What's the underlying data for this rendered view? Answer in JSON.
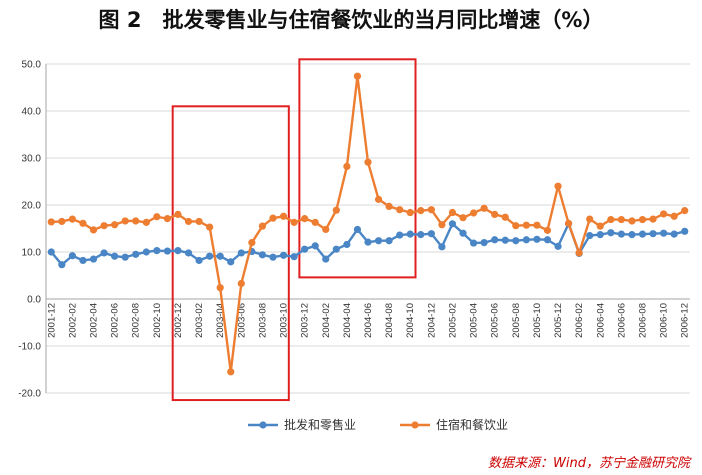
{
  "chart_data": {
    "type": "line",
    "title": "图 2　批发零售业与住宿餐饮业的当月同比增速（%）",
    "xlabel": "",
    "ylabel": "",
    "ylim": [
      -20,
      50
    ],
    "yticks": [
      "50.0",
      "40.0",
      "30.0",
      "20.0",
      "10.0",
      "0.0",
      "-10.0",
      "-20.0"
    ],
    "grid": true,
    "legend_position": "bottom",
    "x": [
      "2001-12",
      "2002-01",
      "2002-02",
      "2002-03",
      "2002-04",
      "2002-05",
      "2002-06",
      "2002-07",
      "2002-08",
      "2002-09",
      "2002-10",
      "2002-11",
      "2002-12",
      "2003-01",
      "2003-02",
      "2003-03",
      "2003-04",
      "2003-05",
      "2003-06",
      "2003-07",
      "2003-08",
      "2003-09",
      "2003-10",
      "2003-11",
      "2003-12",
      "2004-01",
      "2004-02",
      "2004-03",
      "2004-04",
      "2004-05",
      "2004-06",
      "2004-07",
      "2004-08",
      "2004-09",
      "2004-10",
      "2004-11",
      "2004-12",
      "2005-01",
      "2005-02",
      "2005-03",
      "2005-04",
      "2005-05",
      "2005-06",
      "2005-07",
      "2005-08",
      "2005-09",
      "2005-10",
      "2005-11",
      "2005-12",
      "2006-01",
      "2006-02",
      "2006-03",
      "2006-04",
      "2006-05",
      "2006-06",
      "2006-07",
      "2006-08",
      "2006-09",
      "2006-10",
      "2006-11",
      "2006-12"
    ],
    "x_tick_labels": [
      "2001-12",
      "2002-02",
      "2002-04",
      "2002-06",
      "2002-08",
      "2002-10",
      "2002-12",
      "2003-02",
      "2003-04",
      "2003-06",
      "2003-08",
      "2003-10",
      "2003-12",
      "2004-02",
      "2004-04",
      "2004-06",
      "2004-08",
      "2004-10",
      "2004-12",
      "2005-02",
      "2005-04",
      "2005-06",
      "2005-08",
      "2005-10",
      "2005-12",
      "2006-02",
      "2006-04",
      "2006-06",
      "2006-08",
      "2006-10",
      "2006-12"
    ],
    "series": [
      {
        "name": "批发和零售业",
        "color": "#4A86C5",
        "values": [
          10.0,
          7.3,
          9.2,
          8.2,
          8.5,
          9.8,
          9.1,
          8.9,
          9.5,
          10.0,
          10.3,
          10.2,
          10.3,
          9.8,
          8.2,
          9.1,
          9.1,
          7.9,
          9.8,
          10.1,
          9.4,
          8.9,
          9.3,
          9.0,
          10.6,
          11.3,
          8.5,
          10.6,
          11.6,
          14.8,
          12.1,
          12.4,
          12.4,
          13.6,
          13.8,
          13.7,
          13.9,
          11.1,
          16.0,
          14.0,
          11.9,
          12.0,
          12.6,
          12.5,
          12.4,
          12.6,
          12.7,
          12.6,
          11.2,
          16.0,
          9.7,
          13.5,
          13.7,
          14.1,
          13.8,
          13.7,
          13.8,
          13.9,
          14.0,
          13.8,
          14.4
        ]
      },
      {
        "name": "住宿和餐饮业",
        "color": "#ED7D31",
        "values": [
          16.4,
          16.5,
          17.0,
          16.1,
          14.7,
          15.6,
          15.8,
          16.6,
          16.6,
          16.3,
          17.5,
          17.1,
          18.0,
          16.5,
          16.5,
          15.3,
          2.4,
          -15.5,
          3.3,
          12.0,
          15.5,
          17.2,
          17.6,
          16.3,
          17.1,
          16.3,
          14.8,
          18.9,
          28.2,
          47.4,
          29.1,
          21.2,
          19.7,
          19.0,
          18.4,
          18.8,
          19.0,
          15.8,
          18.4,
          17.3,
          18.3,
          19.3,
          18.0,
          17.4,
          15.6,
          15.7,
          15.7,
          14.6,
          24.0,
          16.1,
          9.8,
          17.0,
          15.5,
          16.9,
          16.9,
          16.6,
          16.9,
          17.0,
          18.1,
          17.6,
          18.8
        ]
      }
    ],
    "annotations": [
      {
        "type": "highlight-box",
        "color": "#E02020",
        "x_from": "2002-12",
        "x_to": "2003-10",
        "y_from": -21.5,
        "y_to": 41.0
      },
      {
        "type": "highlight-box",
        "color": "#E02020",
        "x_from": "2003-12",
        "x_to": "2004-10",
        "y_from": 4.6,
        "y_to": 51.0
      }
    ]
  },
  "source": "数据来源：Wind，苏宁金融研究院"
}
